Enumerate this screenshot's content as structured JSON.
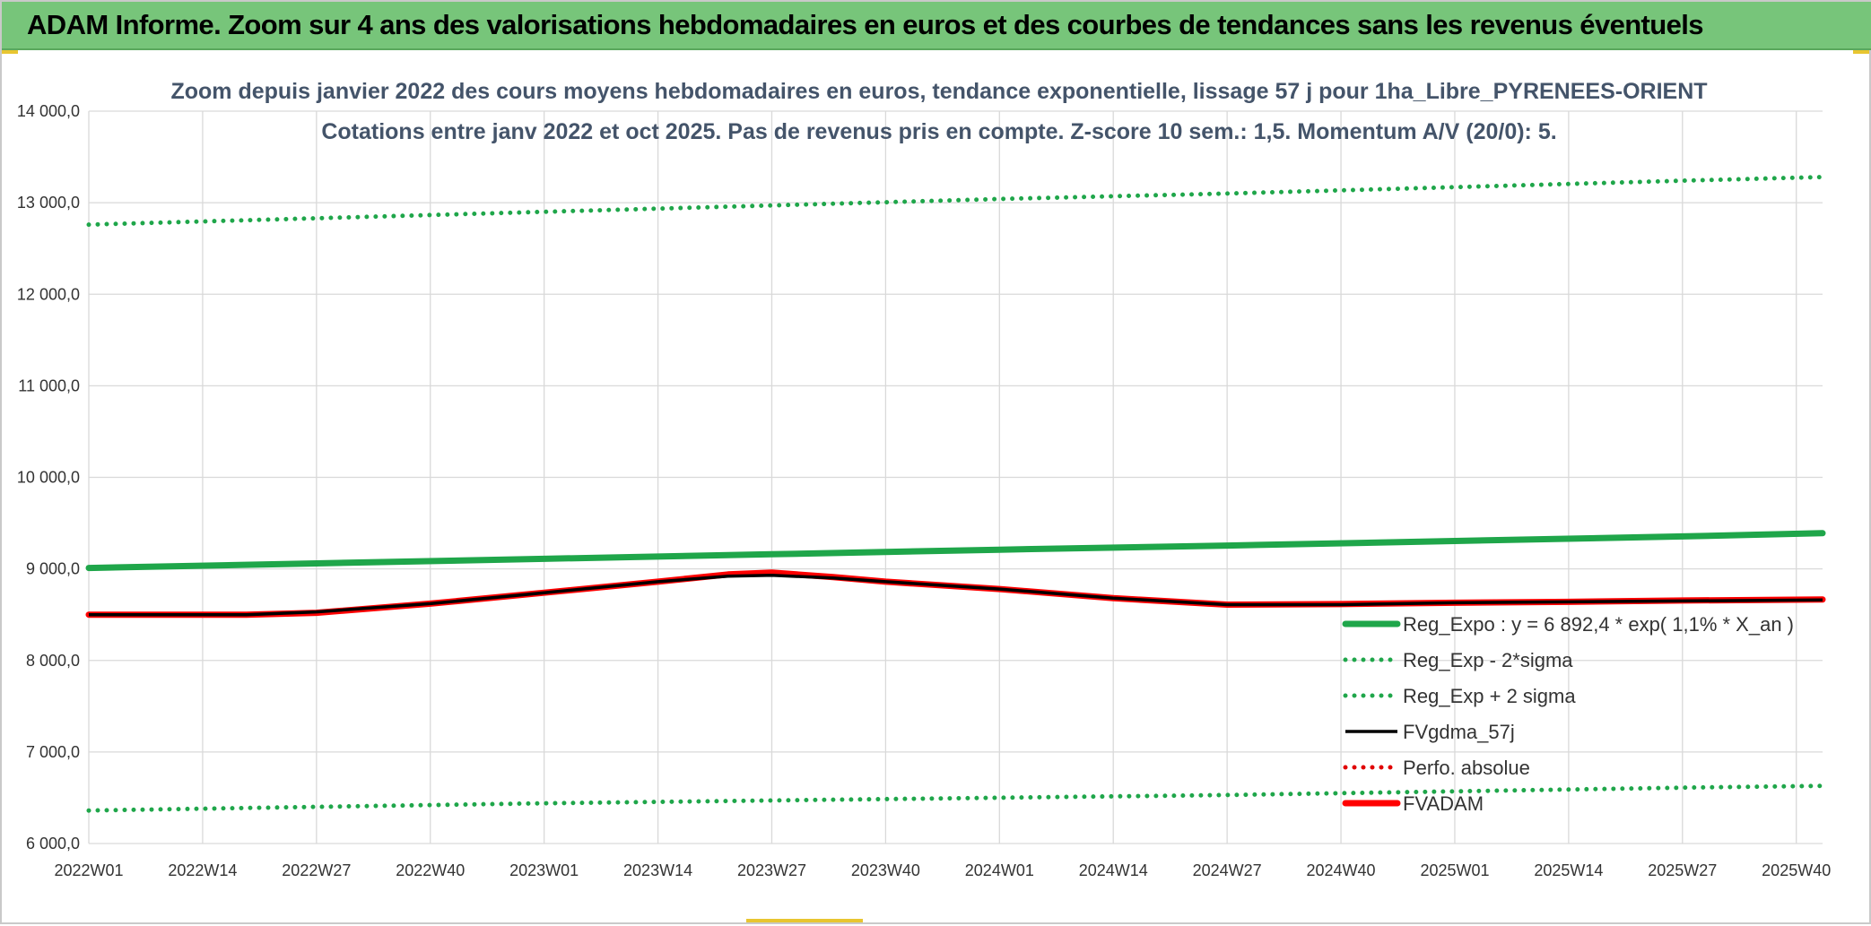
{
  "banner": {
    "title": "ADAM Informe. Zoom sur 4 ans des valorisations hebdomadaires en euros et des courbes de tendances sans les revenus éventuels"
  },
  "colors": {
    "banner_bg": "#77c57a",
    "trend": "#1fa64a",
    "sigma": "#1fa64a",
    "gdma": "#000000",
    "perfo": "#e00000",
    "fvadam": "#ff0000",
    "grid": "#d9d9d9"
  },
  "chart_data": {
    "type": "line",
    "title_line1": "Zoom depuis janvier 2022 des cours moyens hebdomadaires en euros, tendance exponentielle, lissage 57 j pour 1ha_Libre_PYRENEES-ORIENT",
    "title_line2": "Cotations entre janv 2022 et oct 2025. Pas de revenus pris en compte. Z-score 10 sem.: 1,5. Momentum A/V (20/0): 5.",
    "ylim": [
      6000,
      14000
    ],
    "y_ticks": [
      6000,
      7000,
      8000,
      9000,
      10000,
      11000,
      12000,
      13000,
      14000
    ],
    "y_tick_labels": [
      "6 000,0",
      "7 000,0",
      "8 000,0",
      "9 000,0",
      "10 000,0",
      "11 000,0",
      "12 000,0",
      "13 000,0",
      "14 000,0"
    ],
    "x_range": [
      0,
      198
    ],
    "x_ticks": [
      0,
      13,
      26,
      39,
      52,
      65,
      78,
      91,
      104,
      117,
      130,
      143,
      156,
      169,
      182,
      195
    ],
    "x_tick_labels": [
      "2022W01",
      "2022W14",
      "2022W27",
      "2022W40",
      "2023W01",
      "2023W14",
      "2023W27",
      "2023W40",
      "2024W01",
      "2024W14",
      "2024W27",
      "2024W40",
      "2025W01",
      "2025W14",
      "2025W27",
      "2025W40"
    ],
    "series": [
      {
        "name": "Reg_Expo : y = 6 892,4 * exp( 1,1% *  X_an )",
        "style": "solid-thick",
        "color": "#1fa64a",
        "x": [
          0,
          26,
          52,
          78,
          104,
          130,
          156,
          182,
          198
        ],
        "y": [
          9010,
          9060,
          9110,
          9160,
          9210,
          9255,
          9305,
          9355,
          9390
        ]
      },
      {
        "name": "Reg_Exp - 2*sigma",
        "style": "dotted",
        "color": "#1fa64a",
        "x": [
          0,
          26,
          52,
          78,
          104,
          130,
          156,
          182,
          198
        ],
        "y": [
          6360,
          6400,
          6440,
          6470,
          6500,
          6530,
          6570,
          6610,
          6630
        ]
      },
      {
        "name": "Reg_Exp + 2 sigma",
        "style": "dotted",
        "color": "#1fa64a",
        "x": [
          0,
          26,
          52,
          78,
          104,
          130,
          156,
          182,
          198
        ],
        "y": [
          12760,
          12830,
          12900,
          12970,
          13040,
          13100,
          13170,
          13240,
          13280
        ]
      },
      {
        "name": "FVgdma_57j",
        "style": "solid-thin",
        "color": "#000000",
        "x": [
          0,
          18,
          26,
          39,
          52,
          65,
          73,
          78,
          85,
          91,
          104,
          117,
          130,
          143,
          156,
          169,
          182,
          198
        ],
        "y": [
          8500,
          8500,
          8530,
          8620,
          8740,
          8860,
          8920,
          8930,
          8900,
          8860,
          8780,
          8680,
          8610,
          8610,
          8630,
          8640,
          8650,
          8660
        ]
      },
      {
        "name": "Perfo. absolue",
        "style": "dotted",
        "color": "#e00000",
        "x": [],
        "y": []
      },
      {
        "name": "FVADAM",
        "style": "solid-thick",
        "color": "#ff0000",
        "x": [
          0,
          18,
          26,
          39,
          52,
          65,
          73,
          78,
          85,
          91,
          104,
          117,
          130,
          143,
          156,
          169,
          182,
          198
        ],
        "y": [
          8500,
          8500,
          8520,
          8620,
          8740,
          8860,
          8940,
          8960,
          8910,
          8860,
          8780,
          8680,
          8610,
          8615,
          8630,
          8640,
          8655,
          8665
        ]
      }
    ],
    "legend": [
      {
        "label": "Reg_Expo : y = 6 892,4 * exp( 1,1% *  X_an )",
        "style": "solid-thick",
        "color": "#1fa64a"
      },
      {
        "label": "Reg_Exp - 2*sigma",
        "style": "dotted",
        "color": "#1fa64a"
      },
      {
        "label": "Reg_Exp + 2 sigma",
        "style": "dotted",
        "color": "#1fa64a"
      },
      {
        "label": "FVgdma_57j",
        "style": "solid-thin",
        "color": "#000000"
      },
      {
        "label": "Perfo. absolue",
        "style": "dotted",
        "color": "#e00000"
      },
      {
        "label": "FVADAM",
        "style": "solid-thick",
        "color": "#ff0000"
      }
    ],
    "legend_position": "bottom-right",
    "grid": true
  }
}
